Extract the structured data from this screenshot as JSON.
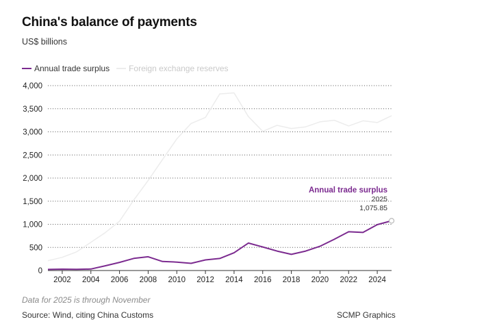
{
  "title": "China's balance of payments",
  "subtitle": "US$ billions",
  "footnote": "Data for 2025 is through November",
  "source": "Source: Wind, citing China Customs",
  "credit": "SCMP Graphics",
  "colors": {
    "trade": "#7b2a8f",
    "reserves": "#ececec",
    "grid": "#555555",
    "axis": "#333333"
  },
  "chart_data": {
    "type": "line",
    "title": "China's balance of payments",
    "ylabel": "US$ billions",
    "xlim": [
      2001,
      2025
    ],
    "ylim": [
      0,
      4000
    ],
    "yticks": [
      0,
      500,
      1000,
      1500,
      2000,
      2500,
      3000,
      3500,
      4000
    ],
    "ytick_labels": [
      "0",
      "500",
      "1,000",
      "1,500",
      "2,000",
      "2,500",
      "3,000",
      "3,500",
      "4,000"
    ],
    "xticks": [
      2002,
      2004,
      2006,
      2008,
      2010,
      2012,
      2014,
      2016,
      2018,
      2020,
      2022,
      2024
    ],
    "xtick_labels": [
      "2002",
      "2004",
      "2006",
      "2008",
      "2010",
      "2012",
      "2014",
      "2016",
      "2018",
      "2020",
      "2022",
      "2024"
    ],
    "legend": [
      "Annual trade surplus",
      "Foreign exchange reserves"
    ],
    "series": [
      {
        "name": "Annual trade surplus",
        "x": [
          2001,
          2002,
          2003,
          2004,
          2005,
          2006,
          2007,
          2008,
          2009,
          2010,
          2011,
          2012,
          2013,
          2014,
          2015,
          2016,
          2017,
          2018,
          2019,
          2020,
          2021,
          2022,
          2023,
          2024,
          2025
        ],
        "values": [
          23,
          30,
          25,
          32,
          102,
          177,
          262,
          298,
          196,
          182,
          155,
          230,
          260,
          383,
          594,
          510,
          420,
          350,
          420,
          524,
          676,
          838,
          823,
          992,
          1075.85
        ]
      },
      {
        "name": "Foreign exchange reserves",
        "x": [
          2001,
          2002,
          2003,
          2004,
          2005,
          2006,
          2007,
          2008,
          2009,
          2010,
          2011,
          2012,
          2013,
          2014,
          2015,
          2016,
          2017,
          2018,
          2019,
          2020,
          2021,
          2022,
          2023,
          2024,
          2025
        ],
        "values": [
          212,
          286,
          403,
          610,
          819,
          1066,
          1528,
          1946,
          2399,
          2847,
          3181,
          3312,
          3821,
          3843,
          3330,
          3011,
          3140,
          3073,
          3108,
          3217,
          3250,
          3128,
          3238,
          3202,
          3350
        ]
      }
    ],
    "annotation": {
      "label": "Annual trade surplus",
      "year": "2025",
      "value": "1,075.85"
    }
  }
}
